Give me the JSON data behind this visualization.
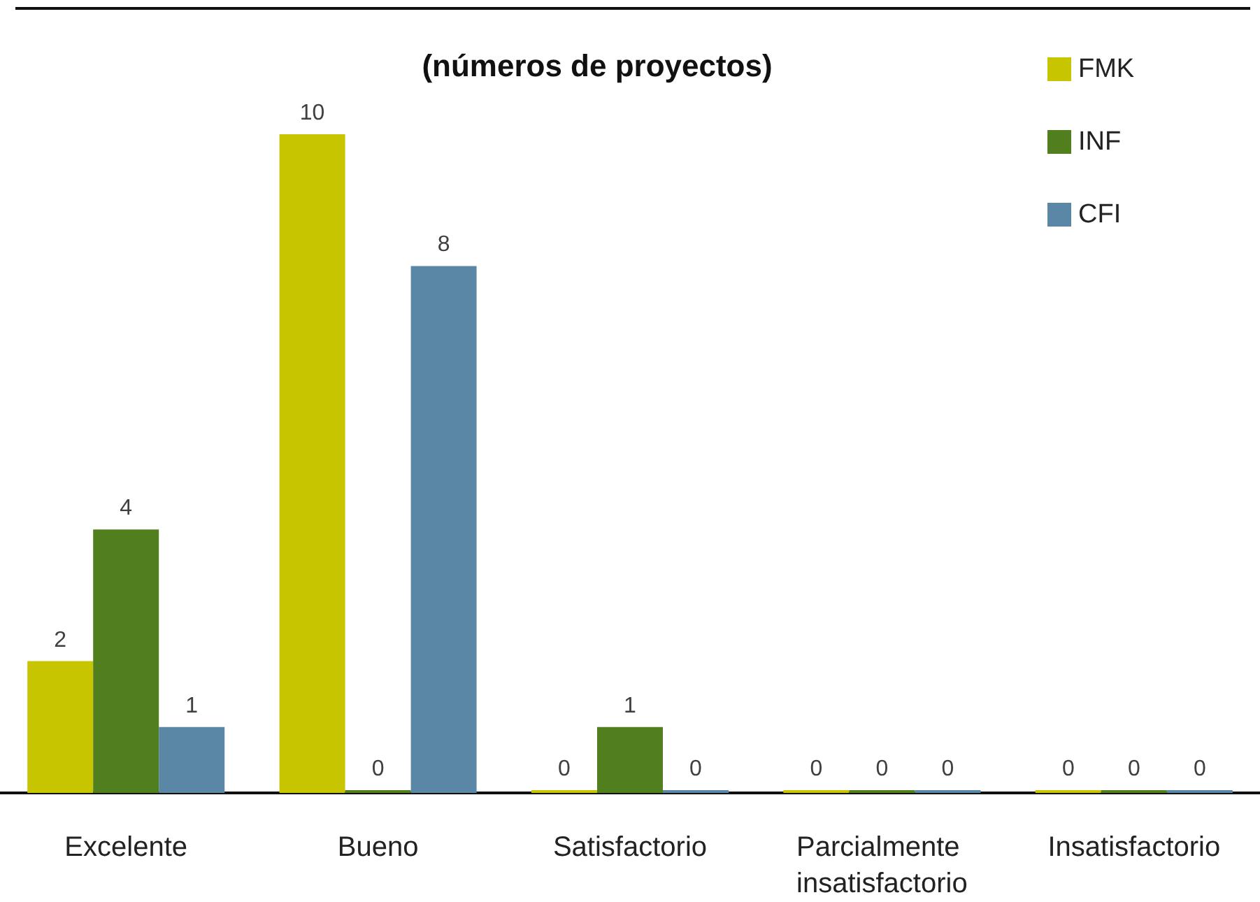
{
  "chart_data": {
    "type": "bar",
    "title": "(números de proyectos)",
    "categories": [
      "Excelente",
      "Bueno",
      "Satisfactorio",
      "Parcialmente insatisfactorio",
      "Insatisfactorio"
    ],
    "series": [
      {
        "name": "FMK",
        "color": "#c6c500",
        "values": [
          2,
          10,
          0,
          0,
          0
        ]
      },
      {
        "name": "INF",
        "color": "#527f1d",
        "values": [
          4,
          0,
          1,
          0,
          0
        ]
      },
      {
        "name": "CFI",
        "color": "#5a87a5",
        "values": [
          1,
          8,
          0,
          0,
          0
        ]
      }
    ],
    "data_labels": true,
    "legend": "top right",
    "grid": false,
    "tick_labels": "x"
  }
}
